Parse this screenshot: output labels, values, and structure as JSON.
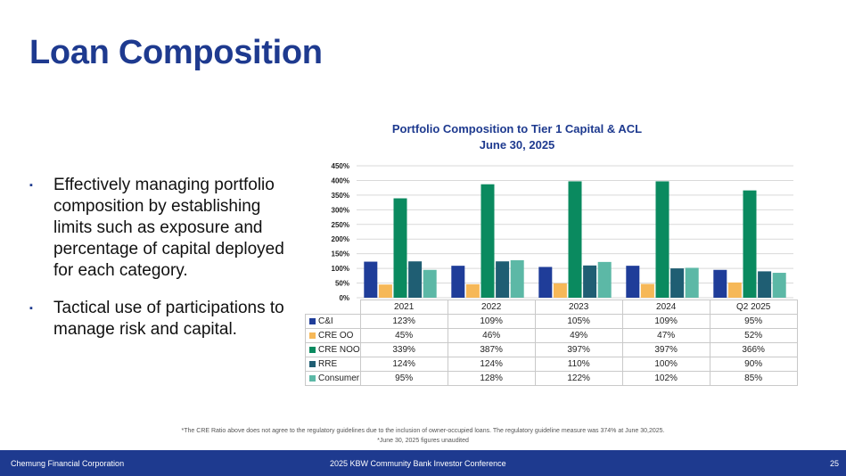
{
  "page": {
    "title": "Loan Composition",
    "bullets": [
      "Effectively managing portfolio composition by establishing limits such as exposure and percentage of capital deployed for each category.",
      "Tactical use of participations to manage risk and capital."
    ],
    "bullet_marker": "▪",
    "footnote_1": "*The CRE Ratio above does not agree to the regulatory guidelines due to the inclusion of owner-occupied loans. The regulatory guideline measure was 374% at June 30,2025.",
    "footnote_2": "*June 30, 2025 figures unaudited",
    "footer": {
      "left": "Chemung Financial Corporation",
      "center": "2025 KBW Community Bank Investor Conference",
      "page_number": "25"
    }
  },
  "chart_data": {
    "type": "bar",
    "title": "Portfolio Composition to Tier 1 Capital & ACL",
    "subtitle": "June 30, 2025",
    "categories": [
      "2021",
      "2022",
      "2023",
      "2024",
      "Q2 2025"
    ],
    "ylim": [
      0,
      450
    ],
    "yticks": [
      0,
      50,
      100,
      150,
      200,
      250,
      300,
      350,
      400,
      450
    ],
    "ytick_labels": [
      "0%",
      "50%",
      "100%",
      "150%",
      "200%",
      "250%",
      "300%",
      "350%",
      "400%",
      "450%"
    ],
    "grid": true,
    "legend": "data-table",
    "series": [
      {
        "name": "C&I",
        "color": "#1f3d99",
        "values": [
          123,
          109,
          105,
          109,
          95
        ],
        "labels": [
          "123%",
          "109%",
          "105%",
          "109%",
          "95%"
        ]
      },
      {
        "name": "CRE OO",
        "color": "#f6b858",
        "values": [
          45,
          46,
          49,
          47,
          52
        ],
        "labels": [
          "45%",
          "46%",
          "49%",
          "47%",
          "52%"
        ]
      },
      {
        "name": "CRE NOO",
        "color": "#0a8a5f",
        "values": [
          339,
          387,
          397,
          397,
          366
        ],
        "labels": [
          "339%",
          "387%",
          "397%",
          "397%",
          "366%"
        ]
      },
      {
        "name": "RRE",
        "color": "#1f5e73",
        "values": [
          124,
          124,
          110,
          100,
          90
        ],
        "labels": [
          "124%",
          "124%",
          "110%",
          "100%",
          "90%"
        ]
      },
      {
        "name": "Consumer",
        "color": "#5cb8a6",
        "values": [
          95,
          128,
          122,
          102,
          85
        ],
        "labels": [
          "95%",
          "128%",
          "122%",
          "102%",
          "85%"
        ]
      }
    ]
  }
}
